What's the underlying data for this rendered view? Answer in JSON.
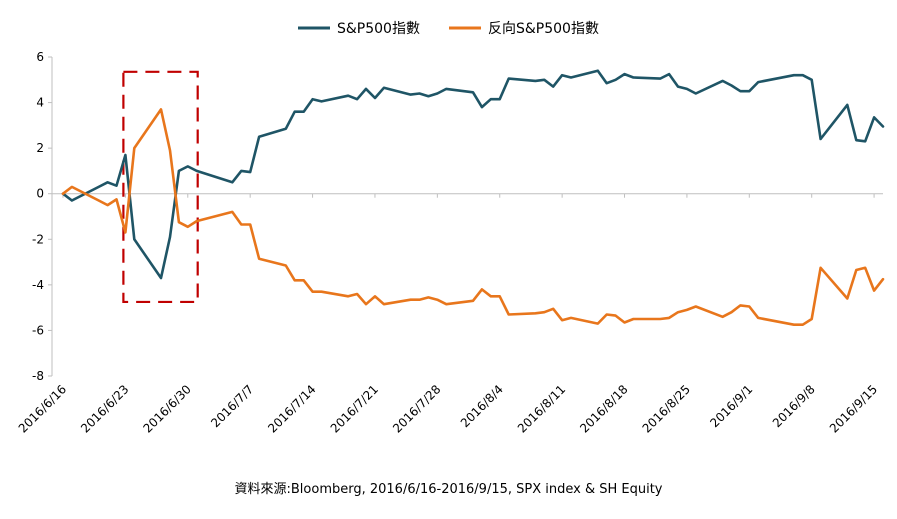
{
  "chart_data": {
    "type": "line",
    "title": "",
    "xlabel": "",
    "ylabel": "",
    "ylim": [
      -8,
      6
    ],
    "yticks": [
      -8,
      -6,
      -4,
      -2,
      0,
      2,
      4,
      6
    ],
    "xticks": [
      "2016/6/16",
      "2016/6/23",
      "2016/6/30",
      "2016/7/7",
      "2016/7/14",
      "2016/7/21",
      "2016/7/28",
      "2016/8/4",
      "2016/8/11",
      "2016/8/18",
      "2016/8/25",
      "2016/9/1",
      "2016/9/8",
      "2016/9/15"
    ],
    "legend_position": "top-center",
    "grid": false,
    "series": [
      {
        "name": "S&P500指數",
        "color": "#1f5566",
        "points": [
          [
            "2016/6/16",
            0.0
          ],
          [
            "2016/6/17",
            -0.3
          ],
          [
            "2016/6/20",
            0.3
          ],
          [
            "2016/6/21",
            0.5
          ],
          [
            "2016/6/22",
            0.35
          ],
          [
            "2016/6/23",
            1.7
          ],
          [
            "2016/6/24",
            -2.0
          ],
          [
            "2016/6/27",
            -3.7
          ],
          [
            "2016/6/28",
            -1.9
          ],
          [
            "2016/6/29",
            1.0
          ],
          [
            "2016/6/30",
            1.2
          ],
          [
            "2016/7/1",
            1.0
          ],
          [
            "2016/7/5",
            0.5
          ],
          [
            "2016/7/6",
            1.0
          ],
          [
            "2016/7/7",
            0.95
          ],
          [
            "2016/7/8",
            2.5
          ],
          [
            "2016/7/11",
            2.85
          ],
          [
            "2016/7/12",
            3.6
          ],
          [
            "2016/7/13",
            3.6
          ],
          [
            "2016/7/14",
            4.15
          ],
          [
            "2016/7/15",
            4.05
          ],
          [
            "2016/7/18",
            4.3
          ],
          [
            "2016/7/19",
            4.15
          ],
          [
            "2016/7/20",
            4.6
          ],
          [
            "2016/7/21",
            4.2
          ],
          [
            "2016/7/22",
            4.65
          ],
          [
            "2016/7/25",
            4.35
          ],
          [
            "2016/7/26",
            4.4
          ],
          [
            "2016/7/27",
            4.28
          ],
          [
            "2016/7/28",
            4.4
          ],
          [
            "2016/7/29",
            4.6
          ],
          [
            "2016/8/1",
            4.45
          ],
          [
            "2016/8/2",
            3.8
          ],
          [
            "2016/8/3",
            4.15
          ],
          [
            "2016/8/4",
            4.15
          ],
          [
            "2016/8/5",
            5.05
          ],
          [
            "2016/8/8",
            4.95
          ],
          [
            "2016/8/9",
            5.0
          ],
          [
            "2016/8/10",
            4.7
          ],
          [
            "2016/8/11",
            5.2
          ],
          [
            "2016/8/12",
            5.1
          ],
          [
            "2016/8/15",
            5.4
          ],
          [
            "2016/8/16",
            4.85
          ],
          [
            "2016/8/17",
            5.0
          ],
          [
            "2016/8/18",
            5.25
          ],
          [
            "2016/8/19",
            5.1
          ],
          [
            "2016/8/22",
            5.05
          ],
          [
            "2016/8/23",
            5.25
          ],
          [
            "2016/8/24",
            4.7
          ],
          [
            "2016/8/25",
            4.6
          ],
          [
            "2016/8/26",
            4.4
          ],
          [
            "2016/8/29",
            4.95
          ],
          [
            "2016/8/30",
            4.75
          ],
          [
            "2016/8/31",
            4.5
          ],
          [
            "2016/9/1",
            4.5
          ],
          [
            "2016/9/2",
            4.9
          ],
          [
            "2016/9/6",
            5.2
          ],
          [
            "2016/9/7",
            5.2
          ],
          [
            "2016/9/8",
            5.0
          ],
          [
            "2016/9/9",
            2.4
          ],
          [
            "2016/9/12",
            3.9
          ],
          [
            "2016/9/13",
            2.35
          ],
          [
            "2016/9/14",
            2.3
          ],
          [
            "2016/9/15",
            3.35
          ],
          [
            "2016/9/16",
            2.95
          ]
        ]
      },
      {
        "name": "反向S&P500指數",
        "color": "#e8761c",
        "points": [
          [
            "2016/6/16",
            0.0
          ],
          [
            "2016/6/17",
            0.3
          ],
          [
            "2016/6/20",
            -0.3
          ],
          [
            "2016/6/21",
            -0.5
          ],
          [
            "2016/6/22",
            -0.25
          ],
          [
            "2016/6/23",
            -1.7
          ],
          [
            "2016/6/24",
            2.0
          ],
          [
            "2016/6/27",
            3.7
          ],
          [
            "2016/6/28",
            1.9
          ],
          [
            "2016/6/29",
            -1.25
          ],
          [
            "2016/6/30",
            -1.45
          ],
          [
            "2016/7/1",
            -1.2
          ],
          [
            "2016/7/5",
            -0.8
          ],
          [
            "2016/7/6",
            -1.35
          ],
          [
            "2016/7/7",
            -1.35
          ],
          [
            "2016/7/8",
            -2.85
          ],
          [
            "2016/7/11",
            -3.15
          ],
          [
            "2016/7/12",
            -3.8
          ],
          [
            "2016/7/13",
            -3.8
          ],
          [
            "2016/7/14",
            -4.3
          ],
          [
            "2016/7/15",
            -4.3
          ],
          [
            "2016/7/18",
            -4.5
          ],
          [
            "2016/7/19",
            -4.4
          ],
          [
            "2016/7/20",
            -4.85
          ],
          [
            "2016/7/21",
            -4.5
          ],
          [
            "2016/7/22",
            -4.85
          ],
          [
            "2016/7/25",
            -4.65
          ],
          [
            "2016/7/26",
            -4.65
          ],
          [
            "2016/7/27",
            -4.55
          ],
          [
            "2016/7/28",
            -4.65
          ],
          [
            "2016/7/29",
            -4.85
          ],
          [
            "2016/8/1",
            -4.7
          ],
          [
            "2016/8/2",
            -4.2
          ],
          [
            "2016/8/3",
            -4.5
          ],
          [
            "2016/8/4",
            -4.5
          ],
          [
            "2016/8/5",
            -5.3
          ],
          [
            "2016/8/8",
            -5.25
          ],
          [
            "2016/8/9",
            -5.2
          ],
          [
            "2016/8/10",
            -5.05
          ],
          [
            "2016/8/11",
            -5.55
          ],
          [
            "2016/8/12",
            -5.45
          ],
          [
            "2016/8/15",
            -5.7
          ],
          [
            "2016/8/16",
            -5.3
          ],
          [
            "2016/8/17",
            -5.35
          ],
          [
            "2016/8/18",
            -5.65
          ],
          [
            "2016/8/19",
            -5.5
          ],
          [
            "2016/8/22",
            -5.5
          ],
          [
            "2016/8/23",
            -5.45
          ],
          [
            "2016/8/24",
            -5.2
          ],
          [
            "2016/8/25",
            -5.1
          ],
          [
            "2016/8/26",
            -4.95
          ],
          [
            "2016/8/29",
            -5.4
          ],
          [
            "2016/8/30",
            -5.2
          ],
          [
            "2016/8/31",
            -4.9
          ],
          [
            "2016/9/1",
            -4.95
          ],
          [
            "2016/9/2",
            -5.45
          ],
          [
            "2016/9/6",
            -5.75
          ],
          [
            "2016/9/7",
            -5.75
          ],
          [
            "2016/9/8",
            -5.5
          ],
          [
            "2016/9/9",
            -3.25
          ],
          [
            "2016/9/12",
            -4.6
          ],
          [
            "2016/9/13",
            -3.35
          ],
          [
            "2016/9/14",
            -3.25
          ],
          [
            "2016/9/15",
            -4.25
          ],
          [
            "2016/9/16",
            -3.75
          ]
        ]
      }
    ],
    "highlight": {
      "x_from": "2016/6/23",
      "x_to": "2016/7/1",
      "y_from": -4.75,
      "y_to": 5.35,
      "color": "#c00000",
      "style": "dashed"
    }
  },
  "source_note": "資料來源:Bloomberg, 2016/6/16-2016/9/15, SPX index & SH Equity"
}
